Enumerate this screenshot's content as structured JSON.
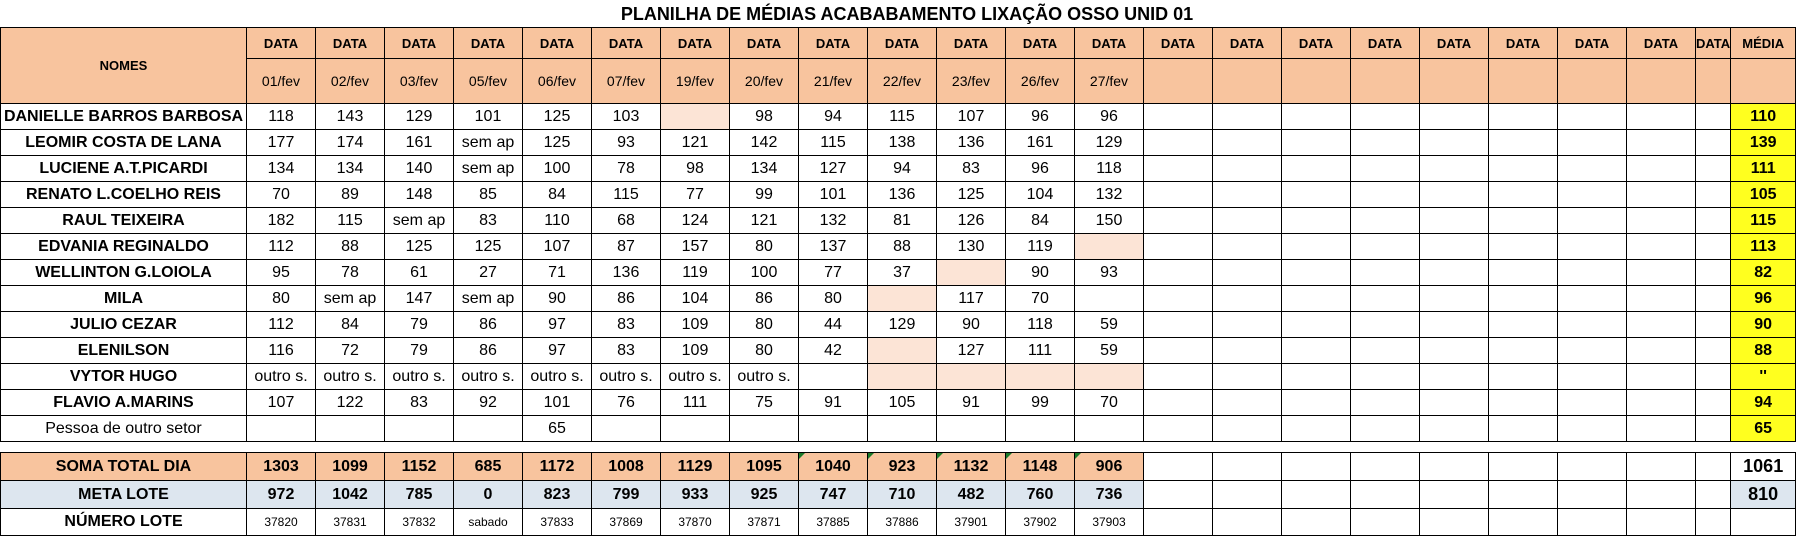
{
  "title": "PLANILHA DE MÉDIAS ACABABAMENTO LIXAÇÃO OSSO UNID 01",
  "header": {
    "names_label": "NOMES",
    "media_label": "MÉDIA",
    "column_labels": [
      "DATA",
      "DATA",
      "DATA",
      "DATA",
      "DATA",
      "DATA",
      "DATA",
      "DATA",
      "DATA",
      "DATA",
      "DATA",
      "DATA",
      "DATA",
      "DATA",
      "DATA",
      "DATA",
      "DATA",
      "DATA",
      "DATA",
      "DATA",
      "DATA",
      "DATA"
    ],
    "dates": [
      "01/fev",
      "02/fev",
      "03/fev",
      "05/fev",
      "06/fev",
      "07/fev",
      "19/fev",
      "20/fev",
      "21/fev",
      "22/fev",
      "23/fev",
      "26/fev",
      "27/fev",
      "",
      "",
      "",
      "",
      "",
      "",
      "",
      "",
      ""
    ]
  },
  "rows": [
    {
      "name": "DANIELLE BARROS BARBOSA",
      "values": [
        "118",
        "143",
        "129",
        "101",
        "125",
        "103",
        "",
        "98",
        "94",
        "115",
        "107",
        "96",
        "96"
      ],
      "highlight": [
        6
      ],
      "media": "110"
    },
    {
      "name": "LEOMIR COSTA DE LANA",
      "values": [
        "177",
        "174",
        "161",
        "sem ap",
        "125",
        "93",
        "121",
        "142",
        "115",
        "138",
        "136",
        "161",
        "129"
      ],
      "highlight": [],
      "media": "139"
    },
    {
      "name": "LUCIENE A.T.PICARDI",
      "values": [
        "134",
        "134",
        "140",
        "sem ap",
        "100",
        "78",
        "98",
        "134",
        "127",
        "94",
        "83",
        "96",
        "118"
      ],
      "highlight": [],
      "media": "111"
    },
    {
      "name": "RENATO L.COELHO REIS",
      "values": [
        "70",
        "89",
        "148",
        "85",
        "84",
        "115",
        "77",
        "99",
        "101",
        "136",
        "125",
        "104",
        "132"
      ],
      "highlight": [],
      "media": "105"
    },
    {
      "name": "RAUL TEIXEIRA",
      "values": [
        "182",
        "115",
        "sem ap",
        "83",
        "110",
        "68",
        "124",
        "121",
        "132",
        "81",
        "126",
        "84",
        "150"
      ],
      "highlight": [],
      "media": "115"
    },
    {
      "name": "EDVANIA REGINALDO",
      "values": [
        "112",
        "88",
        "125",
        "125",
        "107",
        "87",
        "157",
        "80",
        "137",
        "88",
        "130",
        "119",
        ""
      ],
      "highlight": [
        12
      ],
      "media": "113"
    },
    {
      "name": "WELLINTON G.LOIOLA",
      "values": [
        "95",
        "78",
        "61",
        "27",
        "71",
        "136",
        "119",
        "100",
        "77",
        "37",
        "",
        "90",
        "93"
      ],
      "highlight": [
        10
      ],
      "media": "82"
    },
    {
      "name": "MILA",
      "values": [
        "80",
        "sem ap",
        "147",
        "sem ap",
        "90",
        "86",
        "104",
        "86",
        "80",
        "",
        "117",
        "70",
        ""
      ],
      "highlight": [
        9
      ],
      "media": "96"
    },
    {
      "name": "JULIO CEZAR",
      "values": [
        "112",
        "84",
        "79",
        "86",
        "97",
        "83",
        "109",
        "80",
        "44",
        "129",
        "90",
        "118",
        "59"
      ],
      "highlight": [],
      "media": "90"
    },
    {
      "name": "ELENILSON",
      "values": [
        "116",
        "72",
        "79",
        "86",
        "97",
        "83",
        "109",
        "80",
        "42",
        "",
        "127",
        "111",
        "59"
      ],
      "highlight": [
        9
      ],
      "media": "88"
    },
    {
      "name": "VYTOR HUGO",
      "values": [
        "outro s.",
        "outro s.",
        "outro s.",
        "outro s.",
        "outro s.",
        "outro s.",
        "outro s.",
        "outro s.",
        "",
        "",
        "",
        "",
        ""
      ],
      "highlight": [
        9,
        10,
        11,
        12
      ],
      "media": "''"
    },
    {
      "name": "FLAVIO A.MARINS",
      "values": [
        "107",
        "122",
        "83",
        "92",
        "101",
        "76",
        "111",
        "75",
        "91",
        "105",
        "91",
        "99",
        "70"
      ],
      "highlight": [],
      "media": "94"
    },
    {
      "name": "Pessoa de outro setor",
      "values": [
        "",
        "",
        "",
        "",
        "65",
        "",
        "",
        "",
        "",
        "",
        "",
        "",
        ""
      ],
      "highlight": [],
      "media": "65",
      "plain": true
    }
  ],
  "soma": {
    "label": "SOMA TOTAL DIA",
    "values": [
      "1303",
      "1099",
      "1152",
      "685",
      "1172",
      "1008",
      "1129",
      "1095",
      "1040",
      "923",
      "1132",
      "1148",
      "906"
    ],
    "total": "1061"
  },
  "meta": {
    "label": "META LOTE",
    "values": [
      "972",
      "1042",
      "785",
      "0",
      "823",
      "799",
      "933",
      "925",
      "747",
      "710",
      "482",
      "760",
      "736"
    ],
    "total": "810"
  },
  "lote": {
    "label": "NÚMERO LOTE",
    "values": [
      "37820",
      "37831",
      "37832",
      "sabado",
      "37833",
      "37869",
      "37870",
      "37871",
      "37885",
      "37886",
      "37901",
      "37902",
      "37903"
    ]
  }
}
